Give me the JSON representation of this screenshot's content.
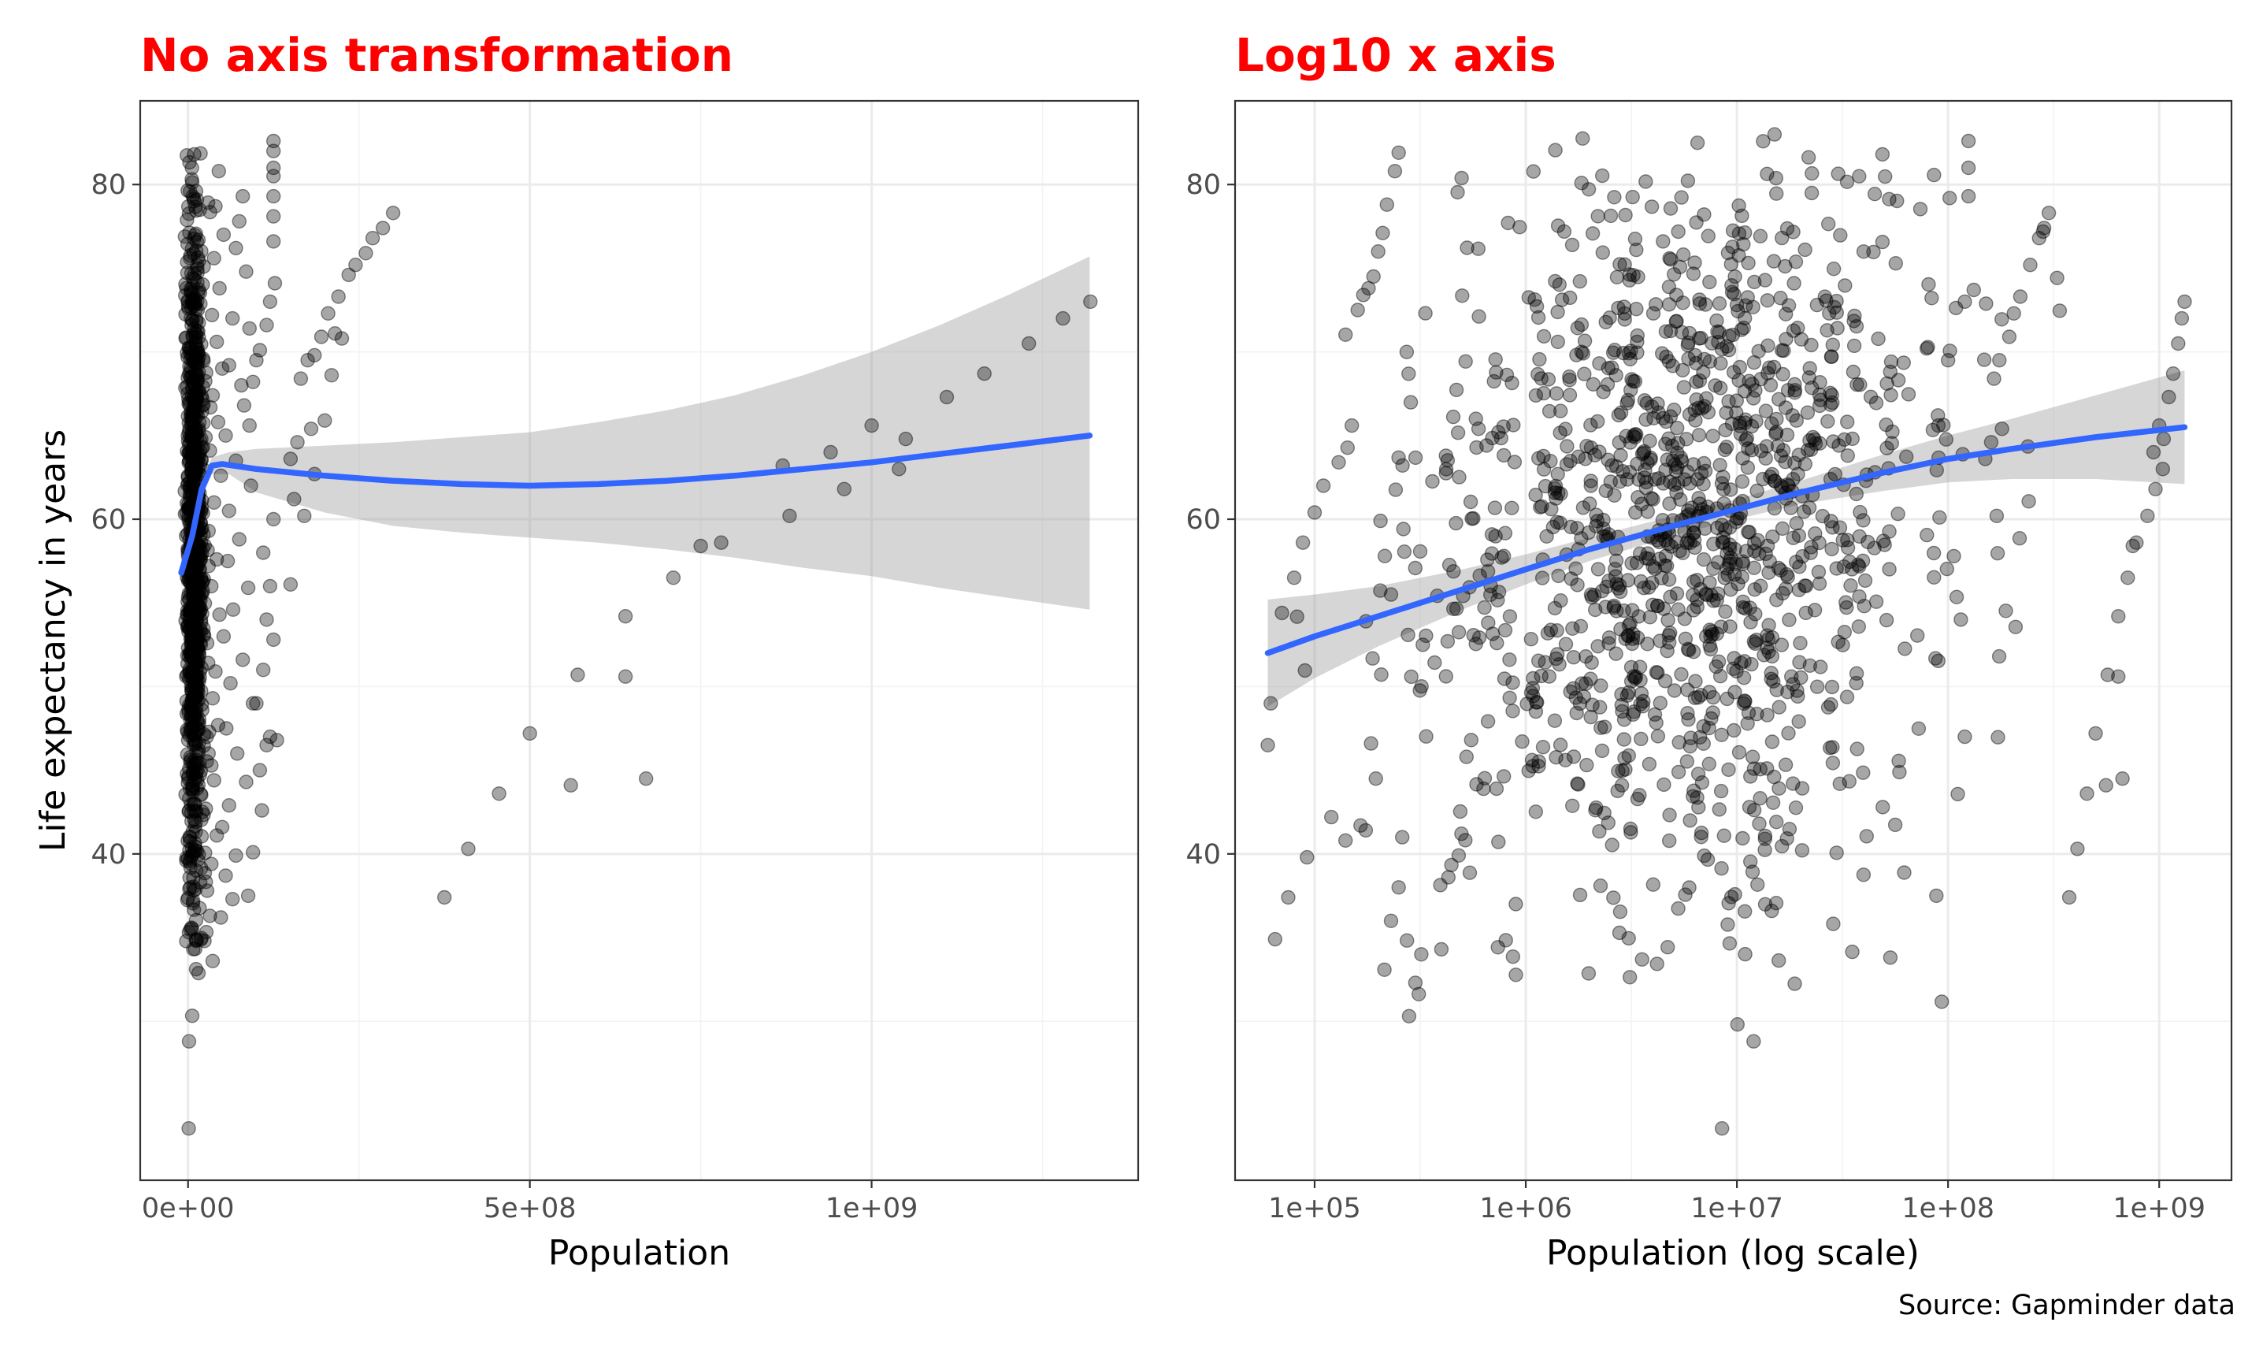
{
  "caption": "Source: Gapminder data",
  "colors": {
    "title": "#ff0000",
    "point": "#000000",
    "smooth_line": "#3366ff",
    "ribbon": "#999999",
    "grid": "#ebebeb",
    "panel_border": "#333333"
  },
  "chart_data": [
    {
      "type": "scatter",
      "title": "No axis transformation",
      "xlabel": "Population",
      "ylabel": "Life expectancy in years",
      "x_scale": "linear",
      "xlim": [
        -70000000,
        1390000000
      ],
      "ylim": [
        20.5,
        85
      ],
      "x_ticks": [
        {
          "value": 0,
          "label": "0e+00"
        },
        {
          "value": 500000000,
          "label": "5e+08"
        },
        {
          "value": 1000000000,
          "label": "1e+09"
        }
      ],
      "y_ticks": [
        {
          "value": 40,
          "label": "40"
        },
        {
          "value": 60,
          "label": "60"
        },
        {
          "value": 80,
          "label": "80"
        }
      ],
      "grid": true,
      "point_alpha": 0.35,
      "points_large": [
        [
          1280000000,
          72.0
        ],
        [
          1230000000,
          70.5
        ],
        [
          1165000000,
          68.7
        ],
        [
          1110000000,
          67.3
        ],
        [
          1050000000,
          64.8
        ],
        [
          1000000000,
          65.6
        ],
        [
          1040000000,
          63.0
        ],
        [
          940000000,
          64.0
        ],
        [
          960000000,
          61.8
        ],
        [
          880000000,
          60.2
        ],
        [
          870000000,
          63.2
        ],
        [
          1320000000,
          73.0
        ],
        [
          780000000,
          58.6
        ],
        [
          750000000,
          58.4
        ],
        [
          710000000,
          56.5
        ],
        [
          640000000,
          54.2
        ],
        [
          640000000,
          50.6
        ],
        [
          570000000,
          50.7
        ],
        [
          560000000,
          44.1
        ],
        [
          500000000,
          47.2
        ],
        [
          455000000,
          43.6
        ],
        [
          410000000,
          40.3
        ],
        [
          375000000,
          37.4
        ],
        [
          670000000,
          44.5
        ],
        [
          300000000,
          78.3
        ],
        [
          285000000,
          77.4
        ],
        [
          270000000,
          76.8
        ],
        [
          260000000,
          75.9
        ],
        [
          245000000,
          75.2
        ],
        [
          235000000,
          74.6
        ],
        [
          220000000,
          73.3
        ],
        [
          205000000,
          72.3
        ],
        [
          215000000,
          71.1
        ],
        [
          225000000,
          70.8
        ],
        [
          195000000,
          70.9
        ],
        [
          185000000,
          69.8
        ],
        [
          175000000,
          69.5
        ],
        [
          165000000,
          68.4
        ],
        [
          210000000,
          68.6
        ],
        [
          200000000,
          65.9
        ],
        [
          180000000,
          65.4
        ],
        [
          160000000,
          64.6
        ],
        [
          150000000,
          63.6
        ],
        [
          155000000,
          61.2
        ],
        [
          170000000,
          60.2
        ],
        [
          185000000,
          62.7
        ],
        [
          125000000,
          82.6
        ],
        [
          125000000,
          82.0
        ],
        [
          125000000,
          81.0
        ],
        [
          125000000,
          80.5
        ],
        [
          125000000,
          79.3
        ],
        [
          125000000,
          78.1
        ],
        [
          125000000,
          76.6
        ],
        [
          127000000,
          74.1
        ],
        [
          120000000,
          73.0
        ],
        [
          115000000,
          71.6
        ],
        [
          105000000,
          70.1
        ],
        [
          100000000,
          69.5
        ],
        [
          95000000,
          68.2
        ],
        [
          90000000,
          65.6
        ],
        [
          125000000,
          60.0
        ],
        [
          110000000,
          58.0
        ],
        [
          120000000,
          56.0
        ],
        [
          115000000,
          54.0
        ],
        [
          125000000,
          52.8
        ],
        [
          110000000,
          51.0
        ],
        [
          100000000,
          49.0
        ],
        [
          120000000,
          47.0
        ],
        [
          115000000,
          46.5
        ],
        [
          105000000,
          45.0
        ],
        [
          150000000,
          56.1
        ],
        [
          130000000,
          46.8
        ],
        [
          108000000,
          42.6
        ],
        [
          95000000,
          40.1
        ],
        [
          88000000,
          37.5
        ],
        [
          80000000,
          79.3
        ],
        [
          75000000,
          77.8
        ],
        [
          70000000,
          76.2
        ],
        [
          85000000,
          74.8
        ],
        [
          65000000,
          72.0
        ],
        [
          90000000,
          71.4
        ],
        [
          60000000,
          69.2
        ],
        [
          78000000,
          68.0
        ],
        [
          82000000,
          66.8
        ],
        [
          55000000,
          65.0
        ],
        [
          70000000,
          63.5
        ],
        [
          92000000,
          62.0
        ],
        [
          60000000,
          60.5
        ],
        [
          75000000,
          58.8
        ],
        [
          58000000,
          57.5
        ],
        [
          88000000,
          55.9
        ],
        [
          66000000,
          54.6
        ],
        [
          52000000,
          53.0
        ],
        [
          80000000,
          51.6
        ],
        [
          62000000,
          50.2
        ],
        [
          95000000,
          49.0
        ],
        [
          56000000,
          47.5
        ],
        [
          72000000,
          46.0
        ],
        [
          85000000,
          44.3
        ],
        [
          60000000,
          42.9
        ],
        [
          50000000,
          41.6
        ],
        [
          70000000,
          39.9
        ],
        [
          55000000,
          38.7
        ],
        [
          65000000,
          37.3
        ],
        [
          48000000,
          36.2
        ],
        [
          45000000,
          80.8
        ],
        [
          40000000,
          78.7
        ],
        [
          52000000,
          77.0
        ],
        [
          38000000,
          75.6
        ],
        [
          46000000,
          73.8
        ],
        [
          35000000,
          72.2
        ],
        [
          42000000,
          70.6
        ],
        [
          50000000,
          69.0
        ],
        [
          36000000,
          67.4
        ],
        [
          44000000,
          65.8
        ],
        [
          32000000,
          64.1
        ],
        [
          48000000,
          62.6
        ],
        [
          38000000,
          61.0
        ],
        [
          30000000,
          59.3
        ],
        [
          42000000,
          57.6
        ],
        [
          34000000,
          56.0
        ],
        [
          46000000,
          54.3
        ],
        [
          28000000,
          52.6
        ],
        [
          40000000,
          50.9
        ],
        [
          36000000,
          49.3
        ],
        [
          44000000,
          47.7
        ],
        [
          30000000,
          46.0
        ],
        [
          38000000,
          44.4
        ],
        [
          26000000,
          42.7
        ],
        [
          42000000,
          41.1
        ],
        [
          34000000,
          39.4
        ],
        [
          28000000,
          37.8
        ],
        [
          32000000,
          36.3
        ],
        [
          24000000,
          34.8
        ],
        [
          36000000,
          33.6
        ]
      ],
      "smooth_curve": [
        [
          -10000000,
          56.8
        ],
        [
          6000000,
          59.0
        ],
        [
          20000000,
          61.8
        ],
        [
          35000000,
          63.2
        ],
        [
          50000000,
          63.3
        ],
        [
          100000000,
          63.0
        ],
        [
          200000000,
          62.6
        ],
        [
          300000000,
          62.3
        ],
        [
          400000000,
          62.1
        ],
        [
          500000000,
          62.0
        ],
        [
          600000000,
          62.1
        ],
        [
          700000000,
          62.3
        ],
        [
          800000000,
          62.6
        ],
        [
          900000000,
          63.0
        ],
        [
          1000000000,
          63.4
        ],
        [
          1100000000,
          63.9
        ],
        [
          1200000000,
          64.4
        ],
        [
          1319000000,
          65.0
        ]
      ],
      "ribbon_upper": [
        [
          -10000000,
          57.6
        ],
        [
          6000000,
          59.6
        ],
        [
          20000000,
          62.3
        ],
        [
          35000000,
          63.7
        ],
        [
          60000000,
          64.0
        ],
        [
          100000000,
          64.2
        ],
        [
          200000000,
          64.4
        ],
        [
          300000000,
          64.6
        ],
        [
          400000000,
          64.9
        ],
        [
          500000000,
          65.2
        ],
        [
          600000000,
          65.8
        ],
        [
          700000000,
          66.5
        ],
        [
          800000000,
          67.4
        ],
        [
          900000000,
          68.6
        ],
        [
          1000000000,
          70.0
        ],
        [
          1100000000,
          71.6
        ],
        [
          1200000000,
          73.4
        ],
        [
          1319000000,
          75.7
        ]
      ],
      "ribbon_lower": [
        [
          -10000000,
          56.0
        ],
        [
          6000000,
          58.4
        ],
        [
          20000000,
          61.3
        ],
        [
          35000000,
          62.7
        ],
        [
          60000000,
          62.7
        ],
        [
          100000000,
          61.6
        ],
        [
          200000000,
          60.4
        ],
        [
          300000000,
          59.6
        ],
        [
          400000000,
          59.2
        ],
        [
          500000000,
          58.9
        ],
        [
          600000000,
          58.6
        ],
        [
          700000000,
          58.2
        ],
        [
          800000000,
          57.7
        ],
        [
          900000000,
          57.1
        ],
        [
          1000000000,
          56.6
        ],
        [
          1100000000,
          55.9
        ],
        [
          1200000000,
          55.3
        ],
        [
          1319000000,
          54.6
        ]
      ]
    },
    {
      "type": "scatter",
      "title": "Log10 x axis",
      "xlabel": "Population (log scale)",
      "ylabel": "",
      "x_scale": "log10",
      "xlim": [
        42000,
        2200000000
      ],
      "ylim": [
        20.5,
        85
      ],
      "x_ticks": [
        {
          "value": 100000,
          "label": "1e+05"
        },
        {
          "value": 1000000,
          "label": "1e+06"
        },
        {
          "value": 10000000,
          "label": "1e+07"
        },
        {
          "value": 100000000,
          "label": "1e+08"
        },
        {
          "value": 1000000000,
          "label": "1e+09"
        }
      ],
      "y_ticks": [
        {
          "value": 40,
          "label": "40"
        },
        {
          "value": 60,
          "label": "60"
        },
        {
          "value": 80,
          "label": "80"
        }
      ],
      "grid": true,
      "point_alpha": 0.35,
      "points_large": [
        [
          1280000000,
          72.0
        ],
        [
          1230000000,
          70.5
        ],
        [
          1165000000,
          68.7
        ],
        [
          1110000000,
          67.3
        ],
        [
          1050000000,
          64.8
        ],
        [
          1000000000,
          65.6
        ],
        [
          1040000000,
          63.0
        ],
        [
          940000000,
          64.0
        ],
        [
          960000000,
          61.8
        ],
        [
          880000000,
          60.2
        ],
        [
          1320000000,
          73.0
        ],
        [
          780000000,
          58.6
        ],
        [
          750000000,
          58.4
        ],
        [
          710000000,
          56.5
        ],
        [
          640000000,
          54.2
        ],
        [
          640000000,
          50.6
        ],
        [
          570000000,
          50.7
        ],
        [
          560000000,
          44.1
        ],
        [
          500000000,
          47.2
        ],
        [
          455000000,
          43.6
        ],
        [
          410000000,
          40.3
        ],
        [
          375000000,
          37.4
        ],
        [
          670000000,
          44.5
        ],
        [
          300000000,
          78.3
        ],
        [
          285000000,
          77.4
        ],
        [
          270000000,
          76.8
        ],
        [
          245000000,
          75.2
        ],
        [
          220000000,
          73.3
        ],
        [
          205000000,
          72.3
        ],
        [
          195000000,
          70.9
        ],
        [
          175000000,
          69.5
        ],
        [
          165000000,
          68.4
        ],
        [
          180000000,
          65.4
        ],
        [
          160000000,
          64.6
        ],
        [
          150000000,
          63.6
        ],
        [
          170000000,
          60.2
        ],
        [
          125000000,
          82.6
        ],
        [
          125000000,
          81.0
        ],
        [
          125000000,
          79.3
        ],
        [
          120000000,
          73.0
        ],
        [
          100000000,
          69.5
        ],
        [
          90000000,
          65.6
        ],
        [
          115000000,
          54.0
        ],
        [
          120000000,
          47.0
        ],
        [
          88000000,
          37.5
        ],
        [
          60000,
          46.5
        ],
        [
          62000,
          49.0
        ],
        [
          65000,
          34.9
        ],
        [
          70000,
          54.4
        ],
        [
          75000,
          37.4
        ],
        [
          80000,
          56.5
        ],
        [
          88000,
          58.6
        ],
        [
          92000,
          39.8
        ],
        [
          100000,
          60.4
        ],
        [
          110000,
          62.0
        ],
        [
          120000,
          42.2
        ],
        [
          130000,
          63.4
        ],
        [
          140000,
          40.8
        ],
        [
          150000,
          65.6
        ],
        [
          160000,
          72.5
        ],
        [
          170000,
          73.4
        ],
        [
          180000,
          73.8
        ],
        [
          190000,
          74.5
        ],
        [
          200000,
          76.0
        ],
        [
          210000,
          77.1
        ],
        [
          220000,
          78.8
        ],
        [
          240000,
          80.8
        ],
        [
          250000,
          81.9
        ],
        [
          230000,
          55.5
        ],
        [
          215000,
          57.8
        ],
        [
          205000,
          59.9
        ],
        [
          195000,
          44.5
        ],
        [
          185000,
          46.6
        ],
        [
          175000,
          53.9
        ],
        [
          165000,
          41.7
        ],
        [
          230000,
          36.0
        ],
        [
          250000,
          38.0
        ],
        [
          260000,
          41.0
        ],
        [
          280000,
          30.3
        ],
        [
          300000,
          32.3
        ],
        [
          320000,
          34.0
        ]
      ],
      "smooth_curve": [
        [
          60000,
          52.0
        ],
        [
          100000,
          53.0
        ],
        [
          200000,
          54.2
        ],
        [
          500000,
          55.8
        ],
        [
          1000000,
          57.0
        ],
        [
          2000000,
          58.2
        ],
        [
          5000000,
          59.6
        ],
        [
          10000000,
          60.6
        ],
        [
          20000000,
          61.6
        ],
        [
          50000000,
          62.8
        ],
        [
          100000000,
          63.6
        ],
        [
          200000000,
          64.2
        ],
        [
          500000000,
          64.9
        ],
        [
          1319000000,
          65.5
        ]
      ],
      "ribbon_upper": [
        [
          60000,
          55.2
        ],
        [
          100000,
          55.5
        ],
        [
          200000,
          56.0
        ],
        [
          500000,
          57.0
        ],
        [
          1000000,
          57.9
        ],
        [
          2000000,
          58.9
        ],
        [
          5000000,
          60.2
        ],
        [
          10000000,
          61.2
        ],
        [
          20000000,
          62.3
        ],
        [
          50000000,
          63.9
        ],
        [
          100000000,
          65.0
        ],
        [
          200000000,
          66.0
        ],
        [
          500000000,
          67.4
        ],
        [
          1319000000,
          68.9
        ]
      ],
      "ribbon_lower": [
        [
          60000,
          48.8
        ],
        [
          100000,
          50.5
        ],
        [
          200000,
          52.4
        ],
        [
          500000,
          54.6
        ],
        [
          1000000,
          56.1
        ],
        [
          2000000,
          57.5
        ],
        [
          5000000,
          59.0
        ],
        [
          10000000,
          60.0
        ],
        [
          20000000,
          60.9
        ],
        [
          50000000,
          61.7
        ],
        [
          100000000,
          62.2
        ],
        [
          200000000,
          62.4
        ],
        [
          500000000,
          62.4
        ],
        [
          1319000000,
          62.1
        ]
      ]
    }
  ]
}
